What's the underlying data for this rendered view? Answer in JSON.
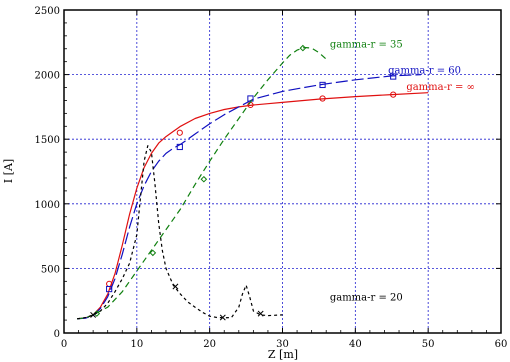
{
  "chart_data": {
    "type": "line",
    "xlabel": "Z  [m]",
    "ylabel": "I  [A]",
    "xlim": [
      0,
      60
    ],
    "ylim": [
      0,
      2500
    ],
    "xticks": [
      0,
      10,
      20,
      30,
      40,
      50,
      60
    ],
    "yticks": [
      0,
      500,
      1000,
      1500,
      2000,
      2500
    ],
    "xtick_labels": [
      "0",
      "10",
      "20",
      "30",
      "40",
      "50",
      "60"
    ],
    "ytick_labels": [
      "0",
      "500",
      "1000",
      "1500",
      "2000",
      "2500"
    ],
    "grid": true,
    "series": [
      {
        "name": "gamma-r = ∞",
        "color": "#e01010",
        "dash": "solid",
        "marker": "circle",
        "label_at": [
          47,
          1880
        ],
        "x": [
          1.8,
          3,
          4,
          5,
          6,
          7,
          8,
          9,
          10,
          11,
          12,
          13,
          14,
          15,
          16,
          18,
          20,
          22,
          24,
          26,
          28,
          30,
          35,
          40,
          45,
          50
        ],
        "y": [
          110,
          118,
          140,
          200,
          300,
          460,
          680,
          920,
          1120,
          1280,
          1390,
          1470,
          1520,
          1560,
          1600,
          1660,
          1700,
          1730,
          1750,
          1765,
          1775,
          1785,
          1810,
          1830,
          1845,
          1860
        ],
        "markers_x": [
          6.2,
          15.9,
          25.6,
          35.5,
          45.2
        ],
        "markers_y": [
          380,
          1550,
          1765,
          1815,
          1845
        ]
      },
      {
        "name": "gamma-r = 60",
        "color": "#1010c0",
        "dash": "long-dash",
        "marker": "square",
        "label_at": [
          44.5,
          2010
        ],
        "x": [
          1.8,
          3,
          4,
          5,
          6,
          7,
          8,
          9,
          10,
          11,
          12,
          13,
          14,
          15,
          16,
          18,
          20,
          22,
          24,
          26,
          28,
          30,
          35,
          40,
          45,
          49
        ],
        "y": [
          110,
          115,
          135,
          190,
          280,
          420,
          610,
          820,
          1000,
          1140,
          1250,
          1330,
          1390,
          1430,
          1460,
          1540,
          1620,
          1690,
          1750,
          1810,
          1840,
          1870,
          1920,
          1960,
          1990,
          2000
        ],
        "markers_x": [
          6.2,
          15.9,
          25.6,
          35.5,
          45.2
        ],
        "markers_y": [
          340,
          1440,
          1815,
          1920,
          1985
        ]
      },
      {
        "name": "gamma-r = 35",
        "color": "#108010",
        "dash": "medium-dash",
        "marker": "diamond",
        "label_at": [
          36.5,
          2210
        ],
        "x": [
          1.8,
          3,
          4,
          5,
          6,
          8,
          10,
          12,
          14,
          16,
          18,
          20,
          22,
          24,
          26,
          28,
          30,
          31,
          32,
          33,
          34,
          35,
          36
        ],
        "y": [
          110,
          118,
          140,
          170,
          200,
          320,
          480,
          640,
          800,
          960,
          1150,
          1330,
          1500,
          1660,
          1820,
          1960,
          2090,
          2150,
          2190,
          2210,
          2205,
          2170,
          2120
        ],
        "markers_x": [
          4.5,
          12.2,
          19.2,
          32.8
        ],
        "markers_y": [
          150,
          620,
          1190,
          2205
        ]
      },
      {
        "name": "gamma-r = 20",
        "color": "#000000",
        "dash": "short-dash",
        "marker": "x",
        "label_at": [
          36.5,
          250
        ],
        "x": [
          1.8,
          3,
          4,
          5,
          6,
          7,
          8,
          9,
          10,
          10.5,
          11,
          11.5,
          12,
          12.5,
          13,
          13.5,
          14,
          15,
          16,
          17,
          18,
          19,
          20,
          21,
          22,
          23,
          24,
          24.5,
          25,
          25.5,
          26,
          27,
          28,
          30
        ],
        "y": [
          110,
          120,
          140,
          170,
          230,
          320,
          420,
          540,
          760,
          1050,
          1330,
          1450,
          1400,
          1150,
          850,
          640,
          500,
          370,
          300,
          240,
          200,
          160,
          130,
          120,
          118,
          120,
          200,
          300,
          370,
          280,
          170,
          140,
          135,
          140
        ],
        "markers_x": [
          4,
          15.3,
          21.8,
          27
        ],
        "markers_y": [
          140,
          360,
          120,
          150
        ]
      }
    ]
  }
}
